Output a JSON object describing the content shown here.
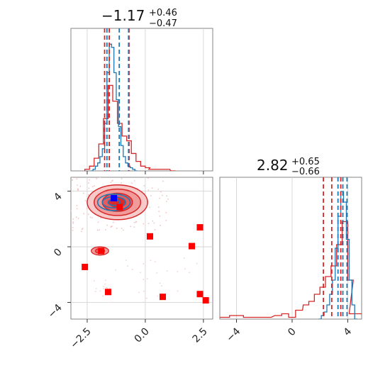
{
  "chart_data": {
    "type": "corner",
    "colors": {
      "blue": "#1f77b4",
      "red": "#d62728",
      "grid": "#cfcfcf",
      "axis": "#666666",
      "marker_blue": "#0000ff",
      "marker_red": "#ff0000"
    },
    "params": [
      {
        "title": {
          "median": "−1.17",
          "plus": "+0.46",
          "minus": "−0.47"
        },
        "range": [
          -3.2,
          2.9
        ],
        "ticks": [
          -2.5,
          0.0,
          2.5
        ],
        "tick_labels": [
          "−2.5",
          "0.0",
          "2.5"
        ],
        "blue_quantiles": [
          -1.65,
          -1.12,
          -0.72
        ],
        "red_quantiles": [
          -1.75,
          -1.55,
          -0.7
        ],
        "hist_blue": {
          "x": [
            -2.3,
            -2.2,
            -2.1,
            -2.0,
            -1.9,
            -1.8,
            -1.7,
            -1.6,
            -1.5,
            -1.4,
            -1.3,
            -1.2,
            -1.1,
            -1.0,
            -0.9,
            -0.8,
            -0.7,
            -0.6,
            -0.5,
            -0.4
          ],
          "y": [
            0,
            1,
            3,
            5,
            9,
            14,
            30,
            62,
            80,
            78,
            62,
            45,
            28,
            16,
            9,
            5,
            3,
            2,
            1,
            0
          ]
        },
        "hist_red": {
          "x": [
            -2.5,
            -2.3,
            -2.1,
            -1.9,
            -1.7,
            -1.5,
            -1.3,
            -1.1,
            -0.9,
            -0.7,
            -0.5,
            -0.3,
            -0.1,
            0.1,
            0.3,
            0.6,
            0.9,
            1.2
          ],
          "y": [
            1,
            3,
            8,
            17,
            33,
            54,
            44,
            30,
            22,
            19,
            11,
            6,
            3,
            2,
            1,
            1,
            1,
            0
          ]
        },
        "hist_ymax": 90
      },
      {
        "title": {
          "median": "2.82",
          "plus": "+0.65",
          "minus": "−0.66"
        },
        "range": [
          -5.2,
          5.0
        ],
        "ticks": [
          -4,
          0,
          4
        ],
        "tick_labels": [
          "−4",
          "0",
          "4"
        ],
        "blue_quantiles": [
          3.3,
          3.65,
          3.95
        ],
        "red_quantiles": [
          2.25,
          2.85,
          3.5
        ],
        "hist_blue": {
          "x": [
            2.0,
            2.2,
            2.4,
            2.6,
            2.8,
            3.0,
            3.2,
            3.4,
            3.6,
            3.8,
            4.0,
            4.2,
            4.4,
            4.6
          ],
          "y": [
            0,
            2,
            4,
            8,
            14,
            22,
            40,
            58,
            72,
            66,
            45,
            22,
            8,
            0
          ]
        },
        "hist_red": {
          "x": [
            -5.0,
            -4.0,
            -3.0,
            -2.0,
            -1.0,
            -0.5,
            0.0,
            0.5,
            1.0,
            1.4,
            1.8,
            2.2,
            2.6,
            3.0,
            3.4,
            3.8,
            4.2,
            4.6
          ],
          "y": [
            1,
            2,
            1,
            1,
            2,
            3,
            1,
            5,
            8,
            10,
            14,
            18,
            24,
            30,
            42,
            55,
            22,
            3
          ]
        },
        "hist_ymax": 80
      }
    ],
    "scatter_red_markers": [
      {
        "x": -2.6,
        "y": -1.45
      },
      {
        "x": -1.9,
        "y": -0.3
      },
      {
        "x": -1.6,
        "y": -3.25
      },
      {
        "x": -1.1,
        "y": 2.85
      },
      {
        "x": 0.2,
        "y": 0.75
      },
      {
        "x": 0.75,
        "y": -3.6
      },
      {
        "x": 2.0,
        "y": 0.05
      },
      {
        "x": 2.35,
        "y": 1.4
      },
      {
        "x": 2.35,
        "y": -3.4
      },
      {
        "x": 2.6,
        "y": -3.85
      }
    ],
    "scatter_blue_marker": {
      "x": -1.35,
      "y": 3.5
    },
    "density_main": {
      "cx": -1.2,
      "cy": 3.2,
      "levels": [
        [
          2.6,
          2.5
        ],
        [
          2.0,
          1.9
        ],
        [
          1.3,
          1.3
        ],
        [
          0.7,
          0.7
        ]
      ]
    },
    "density_small": {
      "cx": -1.95,
      "cy": -0.3,
      "levels": [
        [
          0.75,
          0.6
        ],
        [
          0.4,
          0.35
        ]
      ]
    },
    "blue_contours": {
      "cx": -1.35,
      "cy": 3.2,
      "levels": [
        [
          1.4,
          1.2
        ],
        [
          1.0,
          0.8
        ],
        [
          0.5,
          0.45
        ]
      ]
    }
  }
}
